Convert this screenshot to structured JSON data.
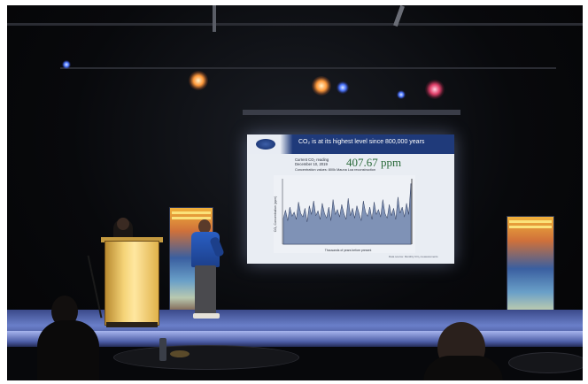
{
  "slide": {
    "title": "CO₂ is at its highest level since 800,000 years",
    "date_line": "Current CO₂ reading\nDecember 10, 2019",
    "ppm_value": "407.67 ppm",
    "caption": "Concentration values: 800k Mauna Loa reconstruction",
    "footnote": "Data source: Monthly CO₂ measurements",
    "y_axis_label": "CO₂ Concentration (ppm)",
    "x_axis_label": "Thousands of years before present"
  },
  "colors": {
    "stage_blue": "#5a6fc0",
    "slide_header": "#1f3a7a",
    "chart_fill": "#7f92b6",
    "podium_light": "#f5d478"
  },
  "co2_series": [
    0.42,
    0.55,
    0.38,
    0.6,
    0.45,
    0.52,
    0.4,
    0.68,
    0.5,
    0.44,
    0.58,
    0.36,
    0.62,
    0.48,
    0.7,
    0.46,
    0.54,
    0.4,
    0.66,
    0.5,
    0.42,
    0.6,
    0.38,
    0.72,
    0.48,
    0.56,
    0.44,
    0.64,
    0.5,
    0.4,
    0.74,
    0.46,
    0.58,
    0.42,
    0.62,
    0.5,
    0.38,
    0.7,
    0.52,
    0.45,
    0.6,
    0.4,
    0.68,
    0.48,
    0.56,
    0.44,
    0.72,
    0.5,
    0.42,
    0.64,
    0.46,
    0.58,
    0.4,
    0.76,
    0.5,
    0.6,
    0.44,
    0.66,
    0.48,
    0.98
  ]
}
